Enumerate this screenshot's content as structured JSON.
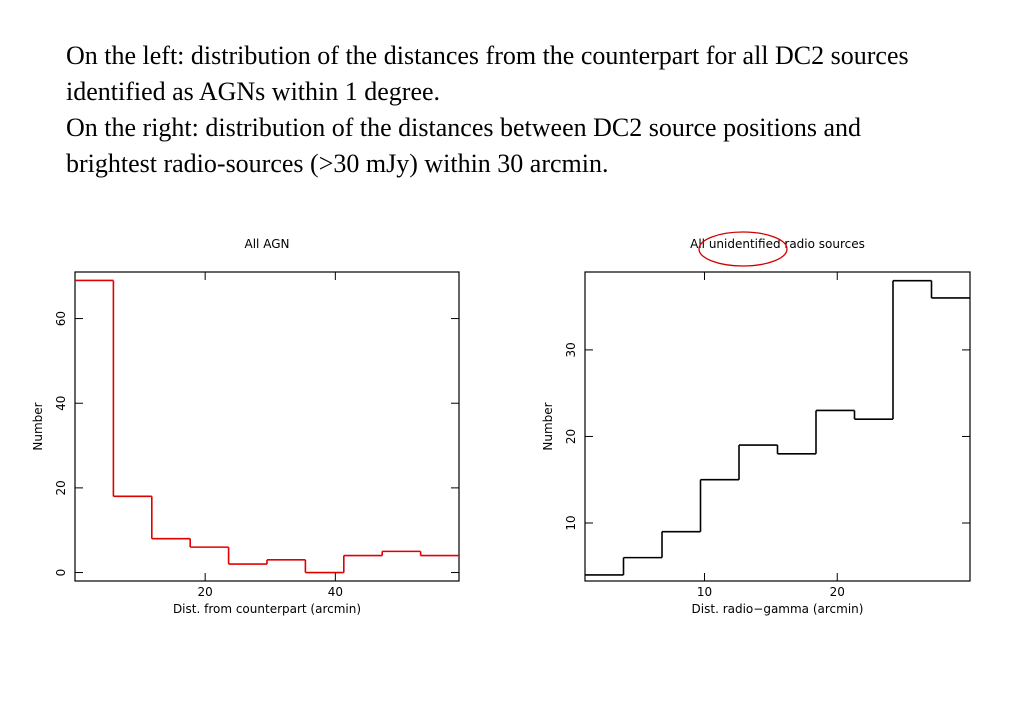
{
  "caption": [
    "On the left: distribution of the distances from the counterpart for all DC2 sources identified as AGNs within 1 degree.",
    "On the right: distribution of the distances between DC2 source positions and brightest radio-sources (>30 mJy) within 30 arcmin."
  ],
  "chart_data": [
    {
      "type": "histogram",
      "title": "All AGN",
      "x_label": "Dist. from counterpart (arcmin)",
      "y_label": "Number",
      "color": "#e00000",
      "bins": [
        0,
        5.9,
        11.8,
        17.7,
        23.6,
        29.5,
        35.4,
        41.3,
        47.2,
        53.1,
        59
      ],
      "values": [
        69,
        18,
        8,
        6,
        2,
        3,
        0,
        4,
        5,
        4
      ],
      "xlim": [
        0,
        59
      ],
      "xticks": [
        20,
        40
      ],
      "ylim": [
        -2,
        71
      ],
      "yticks": [
        0,
        20,
        40,
        60
      ]
    },
    {
      "type": "histogram",
      "title": "All unidentified radio sources",
      "x_label": "Dist. radio−gamma (arcmin)",
      "y_label": "Number",
      "color": "#000000",
      "bins": [
        1,
        3.9,
        6.8,
        9.7,
        12.6,
        15.5,
        18.4,
        21.3,
        24.2,
        27.1,
        30
      ],
      "values": [
        4,
        6,
        9,
        15,
        19,
        18,
        23,
        22,
        38,
        36
      ],
      "xlim": [
        1,
        30
      ],
      "xticks": [
        10,
        20
      ],
      "ylim": [
        3.3,
        39
      ],
      "yticks": [
        10,
        20,
        30
      ]
    }
  ]
}
